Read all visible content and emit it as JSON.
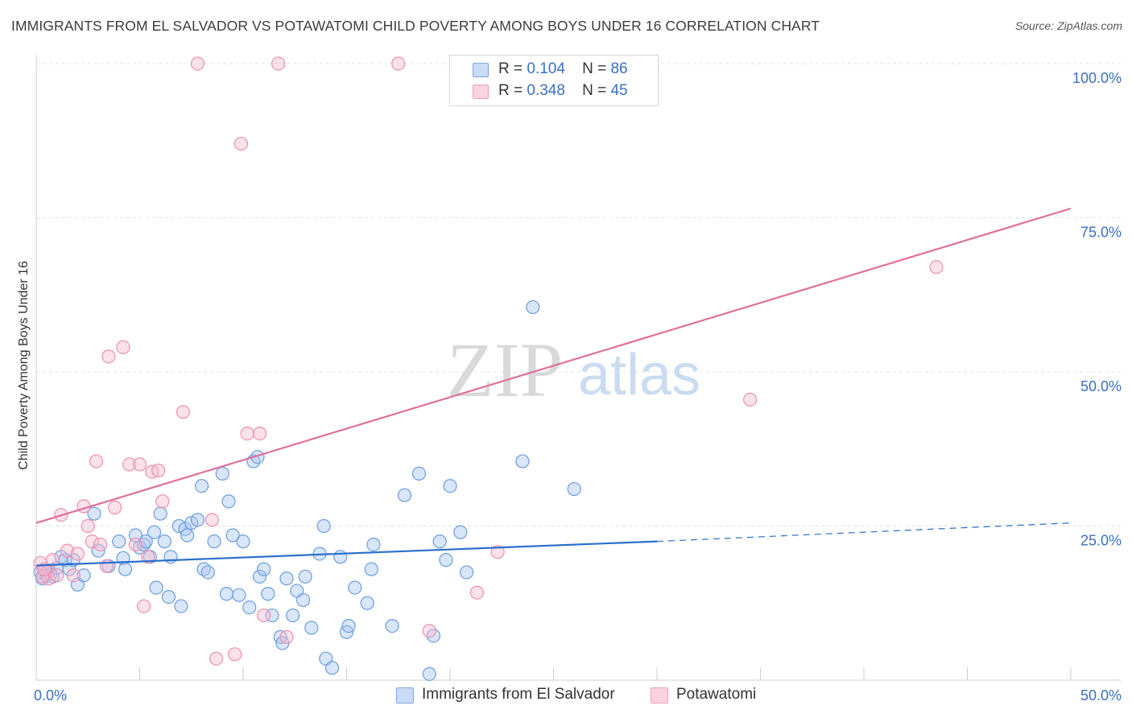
{
  "title": "IMMIGRANTS FROM EL SALVADOR VS POTAWATOMI CHILD POVERTY AMONG BOYS UNDER 16 CORRELATION CHART",
  "source": "Source: ZipAtlas.com",
  "watermark": {
    "part1": "ZIP",
    "part2": "atlas"
  },
  "legend": {
    "rows": [
      {
        "r_label": "R =",
        "r_value": "0.104",
        "n_label": "N =",
        "n_value": "86",
        "color": "#aac6f0"
      },
      {
        "r_label": "R =",
        "r_value": "0.348",
        "n_label": "N =",
        "n_value": "45",
        "color": "#f6bcd0"
      }
    ]
  },
  "bottom_legend": [
    {
      "label": "Immigrants from El Salvador",
      "color": "#aac6f0"
    },
    {
      "label": "Potawatomi",
      "color": "#f6bcd0"
    }
  ],
  "chart_data": {
    "type": "scatter",
    "title": "IMMIGRANTS FROM EL SALVADOR VS POTAWATOMI CHILD POVERTY AMONG BOYS UNDER 16 CORRELATION CHART",
    "xlabel": "",
    "ylabel": "Child Poverty Among Boys Under 16",
    "xlim": [
      0,
      50
    ],
    "ylim": [
      0,
      100
    ],
    "x_tick_labels": [
      "0.0%",
      "50.0%"
    ],
    "y_tick_labels": [
      "25.0%",
      "50.0%",
      "75.0%",
      "100.0%"
    ],
    "y_ticks": [
      25,
      50,
      75,
      100
    ],
    "grid": true,
    "legend_position": "top-center",
    "series": [
      {
        "name": "Immigrants from El Salvador",
        "color": "#6a9ee0",
        "fill": "#aac6f0",
        "trend": {
          "x": [
            0,
            30
          ],
          "y": [
            18.6,
            22.5
          ],
          "dashed_to": [
            50,
            25.5
          ],
          "color": "#2a6fcc"
        },
        "points": [
          [
            0.2,
            17.5
          ],
          [
            0.3,
            16.5
          ],
          [
            0.4,
            18.0
          ],
          [
            0.5,
            17.0
          ],
          [
            0.6,
            17.8
          ],
          [
            0.7,
            17.2
          ],
          [
            0.8,
            16.8
          ],
          [
            1.0,
            18.2
          ],
          [
            1.2,
            20.0
          ],
          [
            1.4,
            19.5
          ],
          [
            1.6,
            18.0
          ],
          [
            1.8,
            19.5
          ],
          [
            2.0,
            15.5
          ],
          [
            2.3,
            17.0
          ],
          [
            2.8,
            27.0
          ],
          [
            3.0,
            21.0
          ],
          [
            3.5,
            18.5
          ],
          [
            4.0,
            22.5
          ],
          [
            4.2,
            19.8
          ],
          [
            4.3,
            18.0
          ],
          [
            4.8,
            23.5
          ],
          [
            5.0,
            21.5
          ],
          [
            5.2,
            22.0
          ],
          [
            5.3,
            22.5
          ],
          [
            5.5,
            20.0
          ],
          [
            5.7,
            24.0
          ],
          [
            5.8,
            15.0
          ],
          [
            6.0,
            27.0
          ],
          [
            6.2,
            22.5
          ],
          [
            6.4,
            13.5
          ],
          [
            6.5,
            20.0
          ],
          [
            6.9,
            25.0
          ],
          [
            7.0,
            12.0
          ],
          [
            7.2,
            24.5
          ],
          [
            7.3,
            23.5
          ],
          [
            7.5,
            25.5
          ],
          [
            7.8,
            26.0
          ],
          [
            8.0,
            31.5
          ],
          [
            8.1,
            18.0
          ],
          [
            8.3,
            17.5
          ],
          [
            8.6,
            22.5
          ],
          [
            9.0,
            33.5
          ],
          [
            9.2,
            14.0
          ],
          [
            9.3,
            29.0
          ],
          [
            9.5,
            23.5
          ],
          [
            9.8,
            13.8
          ],
          [
            10.0,
            22.5
          ],
          [
            10.3,
            11.8
          ],
          [
            10.5,
            35.5
          ],
          [
            10.7,
            36.2
          ],
          [
            10.8,
            16.8
          ],
          [
            11.0,
            18.0
          ],
          [
            11.2,
            14.0
          ],
          [
            11.4,
            10.5
          ],
          [
            11.8,
            7.0
          ],
          [
            11.9,
            6.0
          ],
          [
            12.1,
            16.5
          ],
          [
            12.4,
            10.5
          ],
          [
            12.6,
            14.5
          ],
          [
            12.9,
            13.0
          ],
          [
            13.0,
            16.8
          ],
          [
            13.3,
            8.5
          ],
          [
            13.7,
            20.5
          ],
          [
            13.9,
            25.0
          ],
          [
            14.0,
            3.5
          ],
          [
            14.3,
            2.0
          ],
          [
            14.7,
            20.0
          ],
          [
            15.0,
            7.8
          ],
          [
            15.1,
            8.8
          ],
          [
            15.4,
            15.0
          ],
          [
            16.0,
            12.5
          ],
          [
            16.3,
            22.0
          ],
          [
            16.2,
            18.0
          ],
          [
            17.2,
            8.8
          ],
          [
            17.8,
            30.0
          ],
          [
            18.5,
            33.5
          ],
          [
            19.0,
            1.0
          ],
          [
            19.2,
            7.2
          ],
          [
            19.5,
            22.5
          ],
          [
            19.8,
            19.5
          ],
          [
            20.0,
            31.5
          ],
          [
            20.5,
            24.0
          ],
          [
            20.8,
            17.5
          ],
          [
            23.5,
            35.5
          ],
          [
            24.0,
            60.5
          ],
          [
            26.0,
            31.0
          ]
        ]
      },
      {
        "name": "Potawatomi",
        "color": "#ec8fb0",
        "fill": "#f6bcd0",
        "trend": {
          "x": [
            0,
            50
          ],
          "y": [
            25.5,
            76.5
          ],
          "color": "#e0709a"
        },
        "points": [
          [
            0.2,
            19.0
          ],
          [
            0.5,
            17.5
          ],
          [
            0.6,
            16.5
          ],
          [
            0.8,
            19.5
          ],
          [
            1.0,
            17.0
          ],
          [
            1.2,
            26.8
          ],
          [
            1.5,
            21.0
          ],
          [
            1.8,
            17.0
          ],
          [
            2.0,
            20.5
          ],
          [
            2.3,
            28.2
          ],
          [
            2.5,
            25.0
          ],
          [
            2.7,
            22.5
          ],
          [
            2.9,
            35.5
          ],
          [
            3.1,
            22.0
          ],
          [
            3.4,
            18.5
          ],
          [
            3.5,
            52.5
          ],
          [
            3.8,
            28.0
          ],
          [
            4.2,
            54.0
          ],
          [
            4.5,
            35.0
          ],
          [
            4.8,
            22.0
          ],
          [
            5.0,
            35.0
          ],
          [
            5.2,
            12.0
          ],
          [
            5.4,
            20.0
          ],
          [
            5.6,
            33.8
          ],
          [
            5.9,
            34.0
          ],
          [
            6.1,
            29.0
          ],
          [
            7.1,
            43.5
          ],
          [
            7.8,
            100.0
          ],
          [
            8.5,
            26.0
          ],
          [
            8.7,
            3.5
          ],
          [
            9.6,
            4.2
          ],
          [
            9.9,
            87.0
          ],
          [
            10.2,
            40.0
          ],
          [
            10.8,
            40.0
          ],
          [
            11.0,
            10.5
          ],
          [
            11.7,
            100.0
          ],
          [
            12.1,
            7.0
          ],
          [
            17.5,
            100.0
          ],
          [
            19.0,
            8.0
          ],
          [
            21.3,
            14.2
          ],
          [
            22.3,
            20.8
          ],
          [
            34.5,
            45.5
          ],
          [
            43.5,
            67.0
          ],
          [
            0.3,
            16.8
          ],
          [
            0.4,
            18.0
          ]
        ]
      }
    ]
  }
}
